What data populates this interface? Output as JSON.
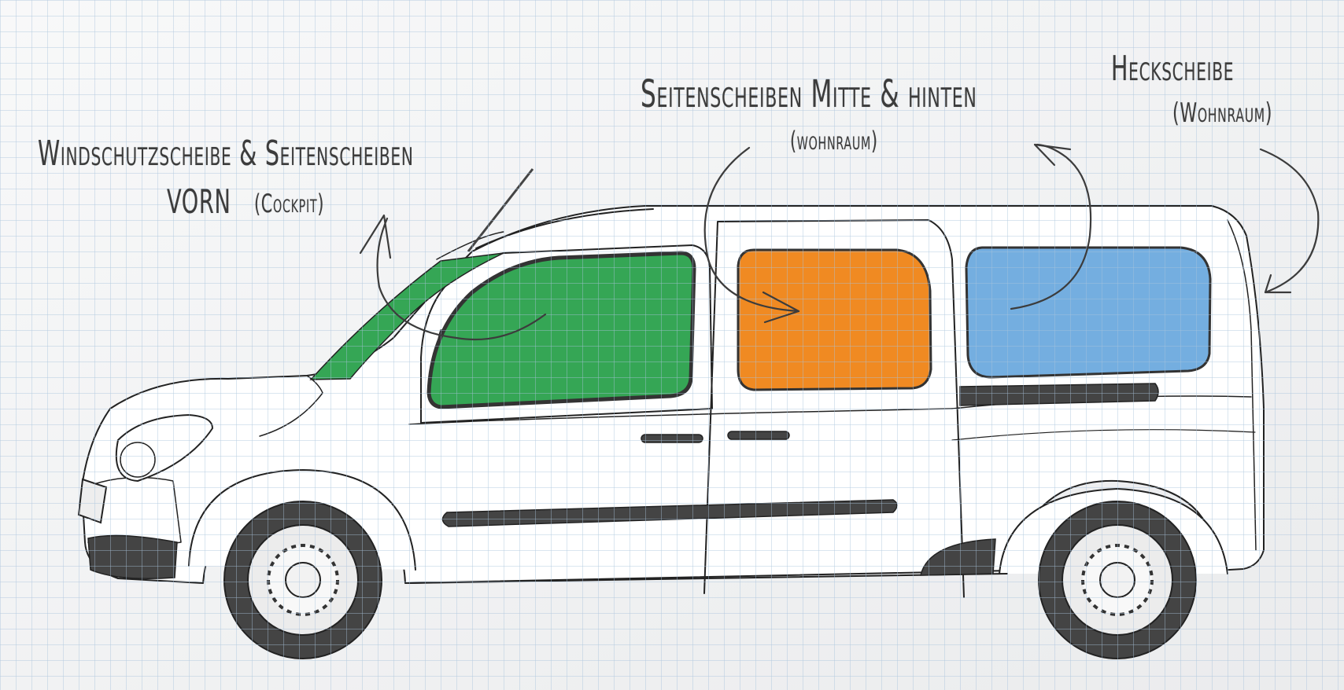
{
  "labels": {
    "front": {
      "title": "Windschutzscheibe & Seitenscheiben",
      "line2": "VORN",
      "sub": "(Cockpit)"
    },
    "middle": {
      "title": "Seitenscheiben Mitte & hinten",
      "sub": "(wohnraum)"
    },
    "rear": {
      "title": "Heckscheibe",
      "sub": "(Wohnraum)"
    }
  },
  "colors": {
    "paper": "#f4f5f6",
    "grid": "#a9c3dc",
    "ink": "#3c3c3c",
    "front_glass": "#35a655",
    "middle_glass": "#f08a22",
    "rear_glass": "#74aee0",
    "trim": "#444444"
  }
}
